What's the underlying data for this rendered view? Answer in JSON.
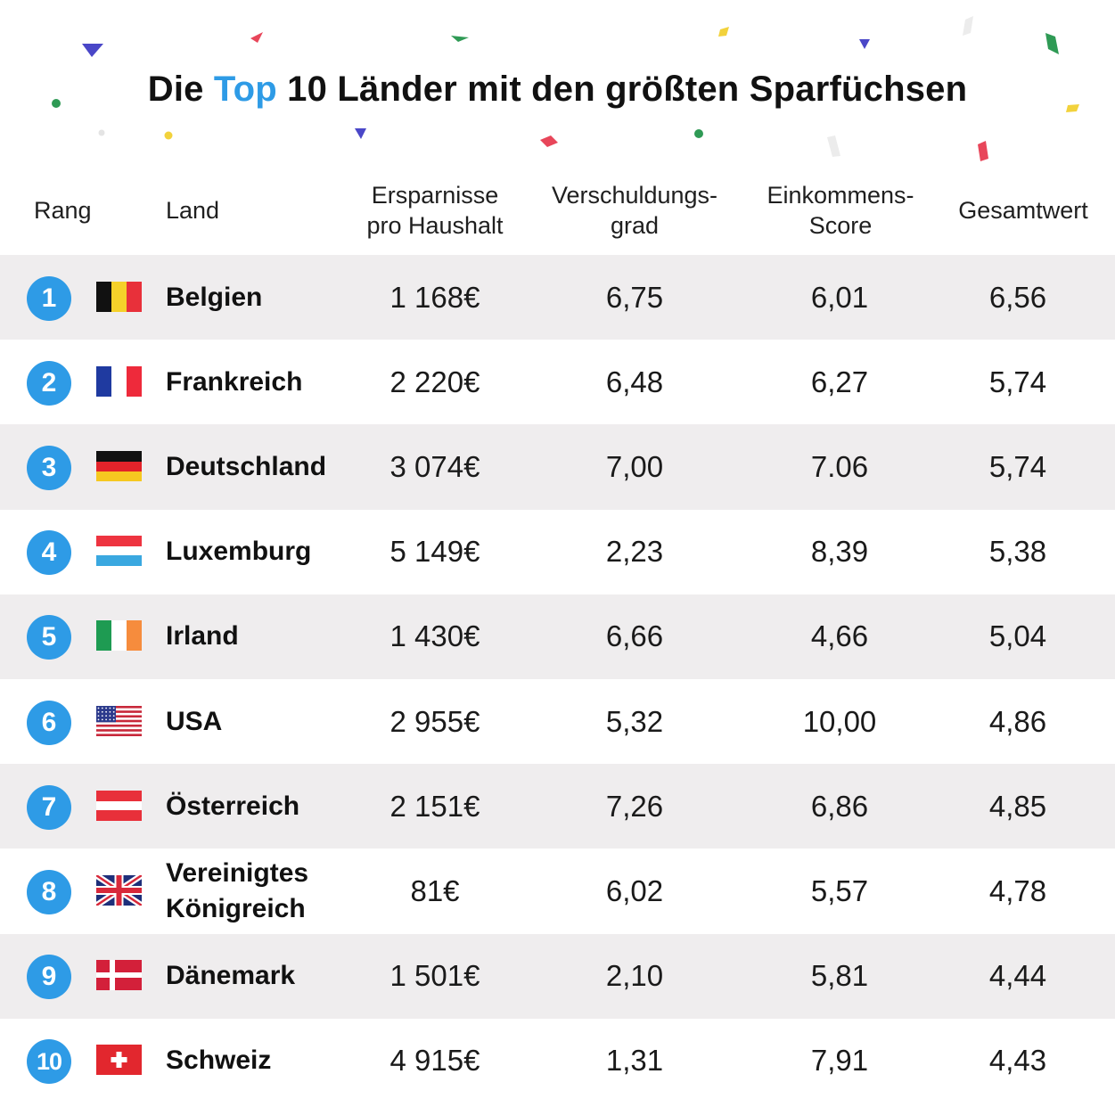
{
  "chart_data": {
    "type": "table",
    "title_parts": [
      "Die ",
      "Top",
      " 10 Länder mit den größten Sparfüchsen"
    ],
    "columns": [
      "Rang",
      "Land",
      "Ersparnisse\npro Haushalt",
      "Verschuldungs-\ngrad",
      "Einkommens-\nScore",
      "Gesamtwert"
    ],
    "accent_color": "#2e9be6",
    "row_shade_color": "#efedee",
    "rows": [
      {
        "rank": "1",
        "flag": "belgium-flag",
        "country": "Belgien",
        "savings": "1 168€",
        "debt": "6,75",
        "income": "6,01",
        "total": "6,56"
      },
      {
        "rank": "2",
        "flag": "france-flag",
        "country": "Frankreich",
        "savings": "2 220€",
        "debt": "6,48",
        "income": "6,27",
        "total": "5,74"
      },
      {
        "rank": "3",
        "flag": "germany-flag",
        "country": "Deutschland",
        "savings": "3 074€",
        "debt": "7,00",
        "income": "7.06",
        "total": "5,74"
      },
      {
        "rank": "4",
        "flag": "luxembourg-flag",
        "country": "Luxemburg",
        "savings": "5 149€",
        "debt": "2,23",
        "income": "8,39",
        "total": "5,38"
      },
      {
        "rank": "5",
        "flag": "ireland-flag",
        "country": "Irland",
        "savings": "1 430€",
        "debt": "6,66",
        "income": "4,66",
        "total": "5,04"
      },
      {
        "rank": "6",
        "flag": "usa-flag",
        "country": "USA",
        "savings": "2 955€",
        "debt": "5,32",
        "income": "10,00",
        "total": "4,86"
      },
      {
        "rank": "7",
        "flag": "austria-flag",
        "country": "Österreich",
        "savings": "2 151€",
        "debt": "7,26",
        "income": "6,86",
        "total": "4,85"
      },
      {
        "rank": "8",
        "flag": "uk-flag",
        "country": "Vereinigtes\nKönigreich",
        "savings": "81€",
        "debt": "6,02",
        "income": "5,57",
        "total": "4,78"
      },
      {
        "rank": "9",
        "flag": "denmark-flag",
        "country": "Dänemark",
        "savings": "1 501€",
        "debt": "2,10",
        "income": "5,81",
        "total": "4,44"
      },
      {
        "rank": "10",
        "flag": "switzerland-flag",
        "country": "Schweiz",
        "savings": "4 915€",
        "debt": "1,31",
        "income": "7,91",
        "total": "4,43"
      }
    ]
  }
}
